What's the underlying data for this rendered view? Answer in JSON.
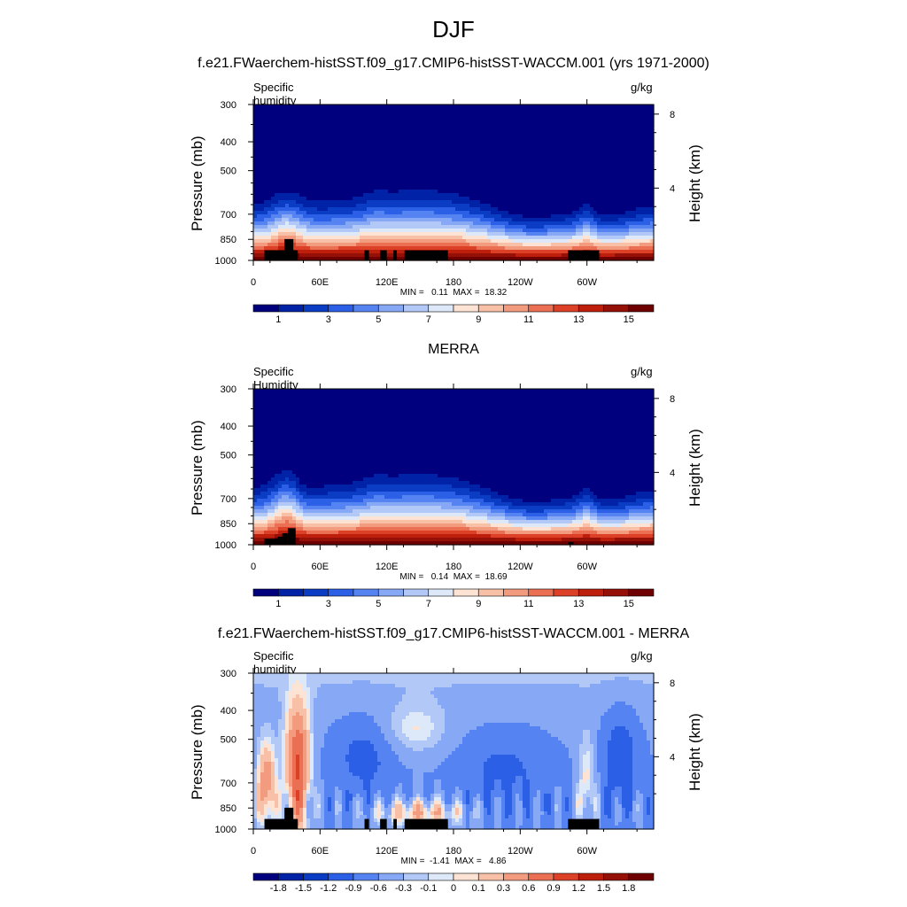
{
  "page": {
    "title": "DJF"
  },
  "chart_data": [
    {
      "type": "heatmap",
      "title": "f.e21.FWaerchem-histSST.f09_g17.CMIP6-histSST-WACCM.001 (yrs 1971-2000)",
      "left_label": "Specific humidity",
      "units": "g/kg",
      "ylabel": "Pressure (mb)",
      "y2label": "Height (km)",
      "y_ticks": [
        "300",
        "400",
        "500",
        "700",
        "850",
        "1000"
      ],
      "y2_ticks": [
        "8",
        "4"
      ],
      "x_ticks": [
        "0",
        "60E",
        "120E",
        "180",
        "120W",
        "60W"
      ],
      "min_text": "MIN =   0.11  MAX =  18.32",
      "colorbar_labels": [
        "1",
        "3",
        "5",
        "7",
        "9",
        "11",
        "13",
        "15"
      ],
      "colorbar_colors": [
        "#00007f",
        "#0022a6",
        "#0b3cc4",
        "#2a5fe6",
        "#5683f2",
        "#86a8f5",
        "#b2c9f7",
        "#dde9f9",
        "#fde3d4",
        "#f8c1a7",
        "#f39b7f",
        "#ea6f53",
        "#dc4128",
        "#bd1f0c",
        "#951006",
        "#6e0001"
      ],
      "field": "q"
    },
    {
      "type": "heatmap",
      "title": "MERRA",
      "left_label": "Specific Humidity",
      "units": "g/kg",
      "ylabel": "Pressure (mb)",
      "y2label": "Height (km)",
      "y_ticks": [
        "300",
        "400",
        "500",
        "700",
        "850",
        "1000"
      ],
      "y2_ticks": [
        "8",
        "4"
      ],
      "x_ticks": [
        "0",
        "60E",
        "120E",
        "180",
        "120W",
        "60W"
      ],
      "min_text": "MIN =   0.14  MAX =  18.69",
      "colorbar_labels": [
        "1",
        "3",
        "5",
        "7",
        "9",
        "11",
        "13",
        "15"
      ],
      "colorbar_colors": [
        "#00007f",
        "#0022a6",
        "#0b3cc4",
        "#2a5fe6",
        "#5683f2",
        "#86a8f5",
        "#b2c9f7",
        "#dde9f9",
        "#fde3d4",
        "#f8c1a7",
        "#f39b7f",
        "#ea6f53",
        "#dc4128",
        "#bd1f0c",
        "#951006",
        "#6e0001"
      ],
      "field": "q_merra"
    },
    {
      "type": "heatmap",
      "title": "f.e21.FWaerchem-histSST.f09_g17.CMIP6-histSST-WACCM.001 - MERRA",
      "left_label": "Specific humidity",
      "units": "g/kg",
      "ylabel": "Pressure (mb)",
      "y2label": "Height (km)",
      "y_ticks": [
        "300",
        "400",
        "500",
        "700",
        "850",
        "1000"
      ],
      "y2_ticks": [
        "8",
        "4"
      ],
      "x_ticks": [
        "0",
        "60E",
        "120E",
        "180",
        "120W",
        "60W"
      ],
      "min_text": "MIN =  -1.41  MAX =   4.86",
      "colorbar_labels": [
        "-1.8",
        "-1.5",
        "-1.2",
        "-0.9",
        "-0.6",
        "-0.3",
        "-0.1",
        "0",
        "0.1",
        "0.3",
        "0.6",
        "0.9",
        "1.2",
        "1.5",
        "1.8"
      ],
      "colorbar_colors": [
        "#00007f",
        "#0022a6",
        "#0b3cc4",
        "#2a5fe6",
        "#5683f2",
        "#86a8f5",
        "#b2c9f7",
        "#dde9f9",
        "#fde3d4",
        "#f8c1a7",
        "#f39b7f",
        "#ea6f53",
        "#dc4128",
        "#bd1f0c",
        "#951006",
        "#6e0001"
      ],
      "field": "diff"
    }
  ]
}
